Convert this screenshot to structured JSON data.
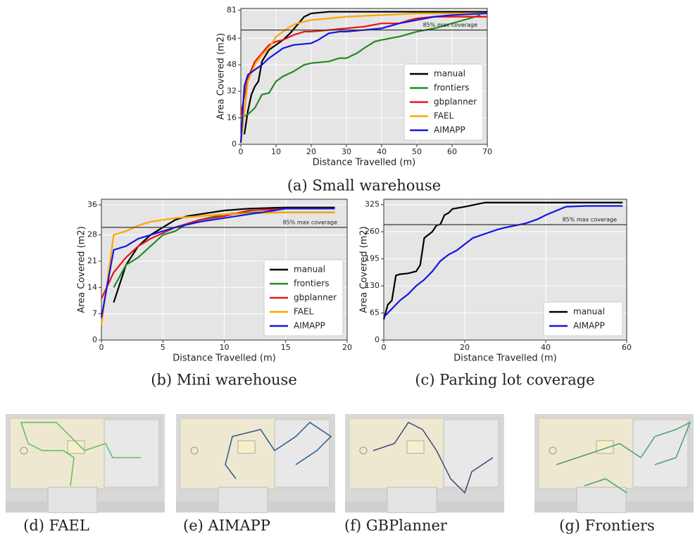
{
  "chart_data": [
    {
      "type": "line",
      "caption": "(a) Small warehouse",
      "xlabel": "Distance Travelled (m)",
      "ylabel": "Area Covered (m2)",
      "xlim": [
        0,
        70
      ],
      "xticks": [
        0,
        10,
        20,
        30,
        40,
        50,
        60,
        70
      ],
      "ylim": [
        0,
        82
      ],
      "yticks": [
        0,
        16,
        32,
        48,
        64,
        81
      ],
      "grid": true,
      "legend": "lower right",
      "threshold": {
        "value": 69,
        "label": "85% max coverage"
      },
      "series": [
        {
          "name": "manual",
          "color": "#000000",
          "x": [
            1,
            2,
            3,
            4,
            5,
            6,
            8,
            10,
            12,
            14,
            16,
            18,
            20,
            25,
            30,
            40,
            50,
            60,
            70
          ],
          "values": [
            6,
            20,
            30,
            35,
            38,
            50,
            57,
            60,
            63,
            67,
            72,
            77,
            79,
            80,
            80,
            80,
            80,
            80,
            80
          ]
        },
        {
          "name": "frontiers",
          "color": "#228b22",
          "x": [
            0,
            2,
            4,
            6,
            8,
            10,
            12,
            15,
            18,
            20,
            25,
            28,
            30,
            33,
            35,
            38,
            40,
            45,
            50,
            55,
            60,
            65,
            68
          ],
          "values": [
            16,
            18,
            22,
            30,
            31,
            38,
            41,
            44,
            48,
            49,
            50,
            52,
            52,
            55,
            58,
            62,
            63,
            65,
            68,
            70,
            73,
            76,
            78
          ]
        },
        {
          "name": "gbplanner",
          "color": "#e8141a",
          "x": [
            0,
            2,
            4,
            6,
            8,
            10,
            12,
            15,
            18,
            20,
            25,
            30,
            35,
            40,
            45,
            48,
            50,
            55,
            60,
            70
          ],
          "values": [
            18,
            40,
            50,
            55,
            60,
            62,
            63,
            66,
            68,
            68,
            69,
            70,
            71,
            73,
            73,
            75,
            76,
            77,
            77,
            77
          ]
        },
        {
          "name": "FAEL",
          "color": "#ffa500",
          "x": [
            0,
            2,
            4,
            6,
            8,
            10,
            12,
            14,
            16,
            20,
            25,
            30,
            40,
            50,
            70
          ],
          "values": [
            0,
            38,
            48,
            54,
            58,
            65,
            68,
            71,
            73,
            75,
            76,
            77,
            78,
            79,
            79
          ]
        },
        {
          "name": "AIMAPP",
          "color": "#1414e6",
          "x": [
            0,
            1,
            2,
            4,
            6,
            8,
            10,
            12,
            15,
            20,
            22,
            25,
            28,
            30,
            35,
            40,
            45,
            50,
            55,
            60,
            70
          ],
          "values": [
            1,
            35,
            42,
            45,
            48,
            52,
            55,
            58,
            60,
            61,
            63,
            67,
            68,
            68,
            69,
            70,
            73,
            75,
            77,
            78,
            79
          ]
        }
      ]
    },
    {
      "type": "line",
      "caption": "(b) Mini warehouse",
      "xlabel": "Distance Travelled (m)",
      "ylabel": "Area Covered (m2)",
      "xlim": [
        0,
        20
      ],
      "xticks": [
        0,
        5,
        10,
        15,
        20
      ],
      "ylim": [
        0,
        37.5
      ],
      "yticks": [
        0,
        7,
        14,
        21,
        28,
        36
      ],
      "grid": true,
      "legend": "lower right",
      "threshold": {
        "value": 30,
        "label": "85% max coverage"
      },
      "series": [
        {
          "name": "manual",
          "color": "#000000",
          "x": [
            1,
            2,
            3,
            4,
            5,
            6,
            7,
            8,
            10,
            12,
            15,
            19
          ],
          "values": [
            10,
            20,
            25,
            28,
            30,
            32,
            33,
            33.5,
            34.5,
            35,
            35.3,
            35.3
          ]
        },
        {
          "name": "frontiers",
          "color": "#228b22",
          "x": [
            1,
            2,
            3,
            4,
            5,
            6,
            7,
            8,
            10,
            12,
            15,
            19
          ],
          "values": [
            14,
            20,
            22,
            25,
            28,
            29,
            31,
            32,
            33.5,
            34,
            34,
            34
          ]
        },
        {
          "name": "gbplanner",
          "color": "#e8141a",
          "x": [
            0,
            1,
            2,
            3,
            4,
            5,
            6,
            8,
            10,
            12,
            15,
            19
          ],
          "values": [
            11,
            18,
            22,
            25,
            27,
            28.5,
            30,
            32,
            33,
            34.5,
            35,
            35
          ]
        },
        {
          "name": "FAEL",
          "color": "#ffa500",
          "x": [
            0,
            1,
            2,
            3,
            4,
            5,
            6,
            8,
            10,
            15,
            19
          ],
          "values": [
            4,
            28,
            29,
            30.5,
            31.5,
            32,
            32.5,
            33,
            33.5,
            34,
            34
          ]
        },
        {
          "name": "AIMAPP",
          "color": "#1414e6",
          "x": [
            0,
            1,
            2,
            3,
            4,
            5,
            6,
            8,
            10,
            12,
            15,
            19
          ],
          "values": [
            6,
            24,
            25,
            27,
            28,
            29,
            30,
            31.5,
            32.5,
            33.5,
            35,
            35
          ]
        }
      ]
    },
    {
      "type": "line",
      "caption": "(c) Parking lot coverage",
      "xlabel": "Distance Travelled (m)",
      "ylabel": "Area Covered (m2)",
      "xlim": [
        0,
        60
      ],
      "xticks": [
        0,
        20,
        40,
        60
      ],
      "ylim": [
        0,
        338
      ],
      "yticks": [
        0,
        65,
        130,
        195,
        260,
        325
      ],
      "grid": true,
      "legend": "lower right",
      "threshold": {
        "value": 277,
        "label": "85% max coverage"
      },
      "series": [
        {
          "name": "manual",
          "color": "#000000",
          "x": [
            0,
            1,
            2,
            3,
            4,
            6,
            8,
            9,
            10,
            12,
            13,
            14,
            15,
            16,
            17,
            20,
            25,
            59
          ],
          "values": [
            50,
            85,
            95,
            155,
            158,
            160,
            165,
            180,
            245,
            260,
            275,
            278,
            300,
            305,
            315,
            320,
            330,
            330
          ]
        },
        {
          "name": "AIMAPP",
          "color": "#1414e6",
          "x": [
            0,
            2,
            4,
            6,
            8,
            10,
            12,
            14,
            16,
            18,
            20,
            22,
            25,
            28,
            30,
            35,
            38,
            40,
            45,
            50,
            59
          ],
          "values": [
            55,
            75,
            95,
            110,
            130,
            145,
            165,
            190,
            205,
            215,
            230,
            245,
            255,
            265,
            270,
            280,
            290,
            300,
            320,
            322,
            322
          ]
        }
      ]
    }
  ],
  "figures": [
    {
      "caption": "(d) FAEL"
    },
    {
      "caption": "(e) AIMAPP"
    },
    {
      "caption": "(f) GBPlanner"
    },
    {
      "caption": "(g) Frontiers"
    }
  ]
}
